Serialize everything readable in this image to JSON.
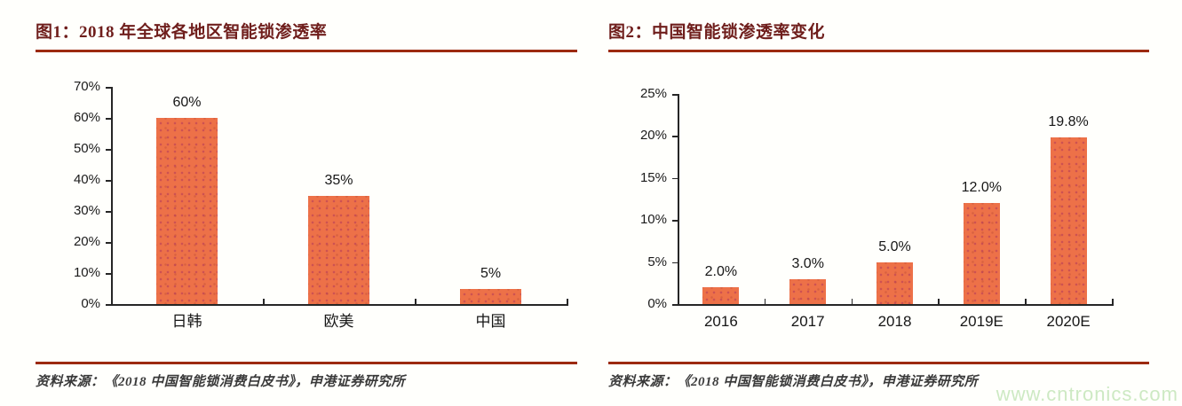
{
  "page": {
    "watermark": {
      "text": "www.cntronics.com"
    }
  },
  "colors": {
    "title": "#6f1e1c",
    "rule": "#9c2a10",
    "axis": "#262626",
    "bar": "#ed7148",
    "bar_dot": "#c04a58",
    "watermark": "#cde9c3"
  },
  "figure1": {
    "title": "图1：2018 年全球各地区智能锁渗透率",
    "source": "资料来源：《2018 中国智能锁消费白皮书》，申港证券研究所",
    "chart_data": {
      "type": "bar",
      "title": "图1：2018 年全球各地区智能锁渗透率",
      "categories": [
        "日韩",
        "欧美",
        "中国"
      ],
      "values": [
        60,
        35,
        5
      ],
      "bar_labels": [
        "60%",
        "35%",
        "5%"
      ],
      "xlabel": "",
      "ylabel": "",
      "ylim": [
        0,
        70
      ],
      "grid": false,
      "legend": false,
      "y_ticks": [
        {
          "label": "70%",
          "value": 70
        },
        {
          "label": "60%",
          "value": 60
        },
        {
          "label": "50%",
          "value": 50
        },
        {
          "label": "40%",
          "value": 40
        },
        {
          "label": "30%",
          "value": 30
        },
        {
          "label": "20%",
          "value": 20
        },
        {
          "label": "10%",
          "value": 10
        },
        {
          "label": "0%",
          "value": 0
        }
      ]
    }
  },
  "figure2": {
    "title": "图2：中国智能锁渗透率变化",
    "source": "资料来源：《2018 中国智能锁消费白皮书》，申港证券研究所",
    "chart_data": {
      "type": "bar",
      "title": "图2：中国智能锁渗透率变化",
      "categories": [
        "2016",
        "2017",
        "2018",
        "2019E",
        "2020E"
      ],
      "values": [
        2,
        3,
        5,
        12,
        19.8
      ],
      "bar_labels": [
        "2.0%",
        "3.0%",
        "5.0%",
        "12.0%",
        "19.8%"
      ],
      "xlabel": "",
      "ylabel": "",
      "ylim": [
        0,
        25
      ],
      "grid": false,
      "legend": false,
      "y_ticks": [
        {
          "label": "25%",
          "value": 25
        },
        {
          "label": "20%",
          "value": 20
        },
        {
          "label": "15%",
          "value": 15
        },
        {
          "label": "10%",
          "value": 10
        },
        {
          "label": "5%",
          "value": 5
        },
        {
          "label": "0%",
          "value": 0
        }
      ]
    }
  }
}
